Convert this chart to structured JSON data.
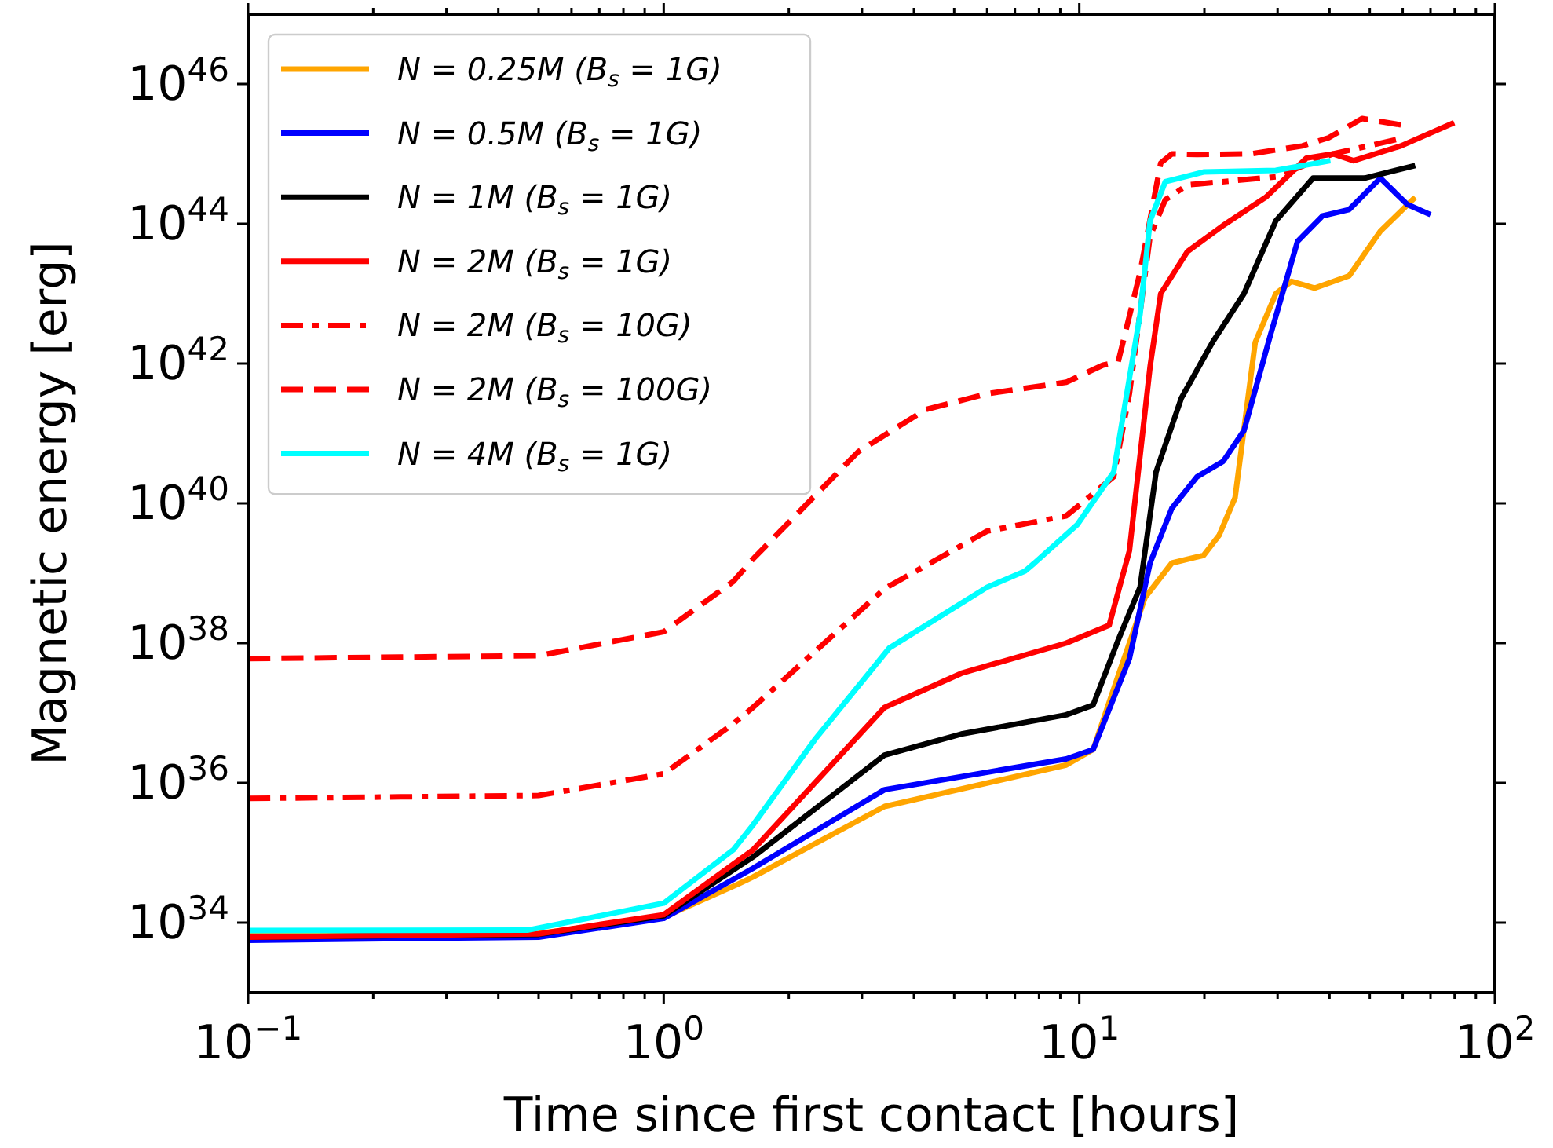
{
  "chart_data": {
    "type": "line",
    "xlabel": "Time since first contact [hours]",
    "ylabel": "Magnetic energy [erg]",
    "log": "xy",
    "xlim": [
      0.1,
      100
    ],
    "ylim": [
      1e+33,
      1e+47
    ],
    "xticks": [
      {
        "value": 0.1,
        "label": "10$^{−1}$"
      },
      {
        "value": 0.2,
        "label": null
      },
      {
        "value": 0.3,
        "label": null
      },
      {
        "value": 0.4,
        "label": null
      },
      {
        "value": 0.5,
        "label": null
      },
      {
        "value": 0.6,
        "label": null
      },
      {
        "value": 0.7,
        "label": null
      },
      {
        "value": 0.8,
        "label": null
      },
      {
        "value": 0.9,
        "label": null
      },
      {
        "value": 1,
        "label": "10$^{0}$"
      },
      {
        "value": 2,
        "label": null
      },
      {
        "value": 3,
        "label": null
      },
      {
        "value": 4,
        "label": null
      },
      {
        "value": 5,
        "label": null
      },
      {
        "value": 6,
        "label": null
      },
      {
        "value": 7,
        "label": null
      },
      {
        "value": 8,
        "label": null
      },
      {
        "value": 9,
        "label": null
      },
      {
        "value": 10,
        "label": "10$^{1}$"
      },
      {
        "value": 20,
        "label": null
      },
      {
        "value": 30,
        "label": null
      },
      {
        "value": 40,
        "label": null
      },
      {
        "value": 50,
        "label": null
      },
      {
        "value": 60,
        "label": null
      },
      {
        "value": 70,
        "label": null
      },
      {
        "value": 80,
        "label": null
      },
      {
        "value": 90,
        "label": null
      },
      {
        "value": 100,
        "label": "10$^{2}$"
      }
    ],
    "yticks": [
      {
        "value": 1e+34,
        "label": "10$^{34}$"
      },
      {
        "value": 1e+36,
        "label": "10$^{36}$"
      },
      {
        "value": 1e+38,
        "label": "10$^{38}$"
      },
      {
        "value": 1e+40,
        "label": "10$^{40}$"
      },
      {
        "value": 1e+42,
        "label": "10$^{42}$"
      },
      {
        "value": 1e+44,
        "label": "10$^{44}$"
      },
      {
        "value": 1e+46,
        "label": "10$^{46}$"
      }
    ],
    "grid": false,
    "legend": "top left",
    "marker": "none",
    "series": [
      {
        "name": "N = 0.25M (B$_{s}$ = 1G)",
        "color": "#ffa500",
        "line_style": "solid",
        "x": [
          0.1,
          0.5,
          1.0,
          1.5,
          1.64,
          3.4,
          9.3,
          10.8,
          12.4,
          14.4,
          16.7,
          19.9,
          21.7,
          23.7,
          26.5,
          29.7,
          32.4,
          36.8,
          44.6,
          53,
          64.3
        ],
        "values": [
          6.6e+33,
          7e+33,
          1.2e+34,
          3.5e+34,
          4.5e+34,
          4.6e+35,
          1.8e+36,
          3e+36,
          3.4e+37,
          4.5e+38,
          1.4e+39,
          1.8e+39,
          3.5e+39,
          1.2e+40,
          2e+42,
          1e+43,
          1.5e+43,
          1.2e+43,
          1.8e+43,
          7.8e+43,
          2.4e+44
        ]
      },
      {
        "name": "N = 0.5M (B$_{s}$ = 1G)",
        "color": "#0000ff",
        "line_style": "solid",
        "x": [
          0.1,
          0.5,
          1.0,
          1.64,
          3.4,
          9.3,
          10.8,
          13.2,
          14.8,
          16.7,
          19.2,
          22.2,
          24.9,
          28.8,
          33.5,
          38.5,
          44.6,
          53,
          61.5,
          70
        ],
        "values": [
          5.6e+33,
          6.2e+33,
          1.15e+34,
          6e+34,
          8e+35,
          2.2e+36,
          3e+36,
          6e+37,
          1.4e+39,
          8.5e+39,
          2.4e+40,
          4e+40,
          1.1e+41,
          2.5e+42,
          5.6e+43,
          1.3e+44,
          1.6e+44,
          4.5e+44,
          1.9e+44,
          1.35e+44
        ]
      },
      {
        "name": "N = 1M (B$_{s}$ = 1G)",
        "color": "#000000",
        "line_style": "solid",
        "x": [
          0.1,
          0.5,
          1.0,
          1.64,
          3.4,
          5.2,
          9.3,
          10.8,
          12.4,
          14.0,
          15.3,
          17.6,
          20.9,
          24.9,
          29.7,
          36.5,
          48.6,
          64.3
        ],
        "values": [
          6.2e+33,
          6.8e+33,
          1.25e+34,
          8.7e+34,
          2.5e+36,
          5e+36,
          9.4e+36,
          1.3e+37,
          1.1e+38,
          6.3e+38,
          2.8e+40,
          3.2e+41,
          2e+42,
          1e+43,
          1.1e+44,
          4.5e+44,
          4.5e+44,
          6.8e+44
        ]
      },
      {
        "name": "N = 2M (B$_{s}$ = 1G)",
        "color": "#ff0000",
        "line_style": "solid",
        "x": [
          0.1,
          0.5,
          1.0,
          1.64,
          3.4,
          5.2,
          9.3,
          11.8,
          13.2,
          14.8,
          15.7,
          18.2,
          22.2,
          28.1,
          35.2,
          40.8,
          45.7,
          59.4,
          79.8
        ],
        "values": [
          6.2e+33,
          6.9e+33,
          1.3e+34,
          1.1e+35,
          1.2e+37,
          3.7e+37,
          1e+38,
          1.8e+38,
          2.1e+39,
          9e+41,
          1e+43,
          4e+43,
          9.5e+43,
          2.4e+44,
          8.7e+44,
          1e+45,
          8e+44,
          1.3e+45,
          2.8e+45
        ]
      },
      {
        "name": "N = 2M (B$_{s}$ = 10G)",
        "color": "#ff0000",
        "line_style": "dashdot",
        "x": [
          0.1,
          0.5,
          1.0,
          1.47,
          1.64,
          3.4,
          6.0,
          9.3,
          12.1,
          13.2,
          14.8,
          16.1,
          18.2,
          29.7,
          40.8,
          57.8
        ],
        "values": [
          6e+35,
          6.6e+35,
          1.35e+36,
          7e+36,
          1.2e+37,
          6e+38,
          4e+39,
          6.6e+39,
          2.4e+40,
          3.7e+41,
          6.6e+43,
          2.2e+44,
          3.6e+44,
          4.7e+44,
          1e+45,
          1.6e+45
        ]
      },
      {
        "name": "N = 2M (B$_{s}$ = 100G)",
        "color": "#ff0000",
        "line_style": "dashed",
        "x": [
          0.1,
          0.5,
          1.0,
          1.47,
          1.64,
          2.94,
          4.27,
          6.0,
          9.3,
          11.4,
          12.4,
          14.0,
          15.7,
          16.7,
          19.2,
          25.8,
          34.4,
          39.8,
          47.9,
          59.4
        ],
        "values": [
          6e+37,
          6.6e+37,
          1.45e+38,
          7.6e+38,
          1.6e+39,
          5.5e+40,
          2.2e+41,
          3.7e+41,
          5.4e+41,
          9.5e+41,
          1.05e+42,
          2e+43,
          7.4e+44,
          1e+45,
          9.8e+44,
          1e+45,
          1.3e+45,
          1.7e+45,
          3.2e+45,
          2.6e+45
        ]
      },
      {
        "name": "N = 4M (B$_{s}$ = 1G)",
        "color": "#00ffff",
        "line_style": "solid",
        "x": [
          0.1,
          0.47,
          1.0,
          1.47,
          1.64,
          2.32,
          3.49,
          6.0,
          7.4,
          7.8,
          9.9,
          12.1,
          14.0,
          14.8,
          16.1,
          19.9,
          29.7,
          40.2
        ],
        "values": [
          7.7e+33,
          7.8e+33,
          1.9e+34,
          1.1e+35,
          2.5e+35,
          4.3e+36,
          8.5e+37,
          6.3e+38,
          1.07e+39,
          1.4e+39,
          5e+39,
          2.8e+40,
          5e+42,
          1.1e+44,
          4e+44,
          5.5e+44,
          5.8e+44,
          8e+44
        ]
      }
    ]
  }
}
